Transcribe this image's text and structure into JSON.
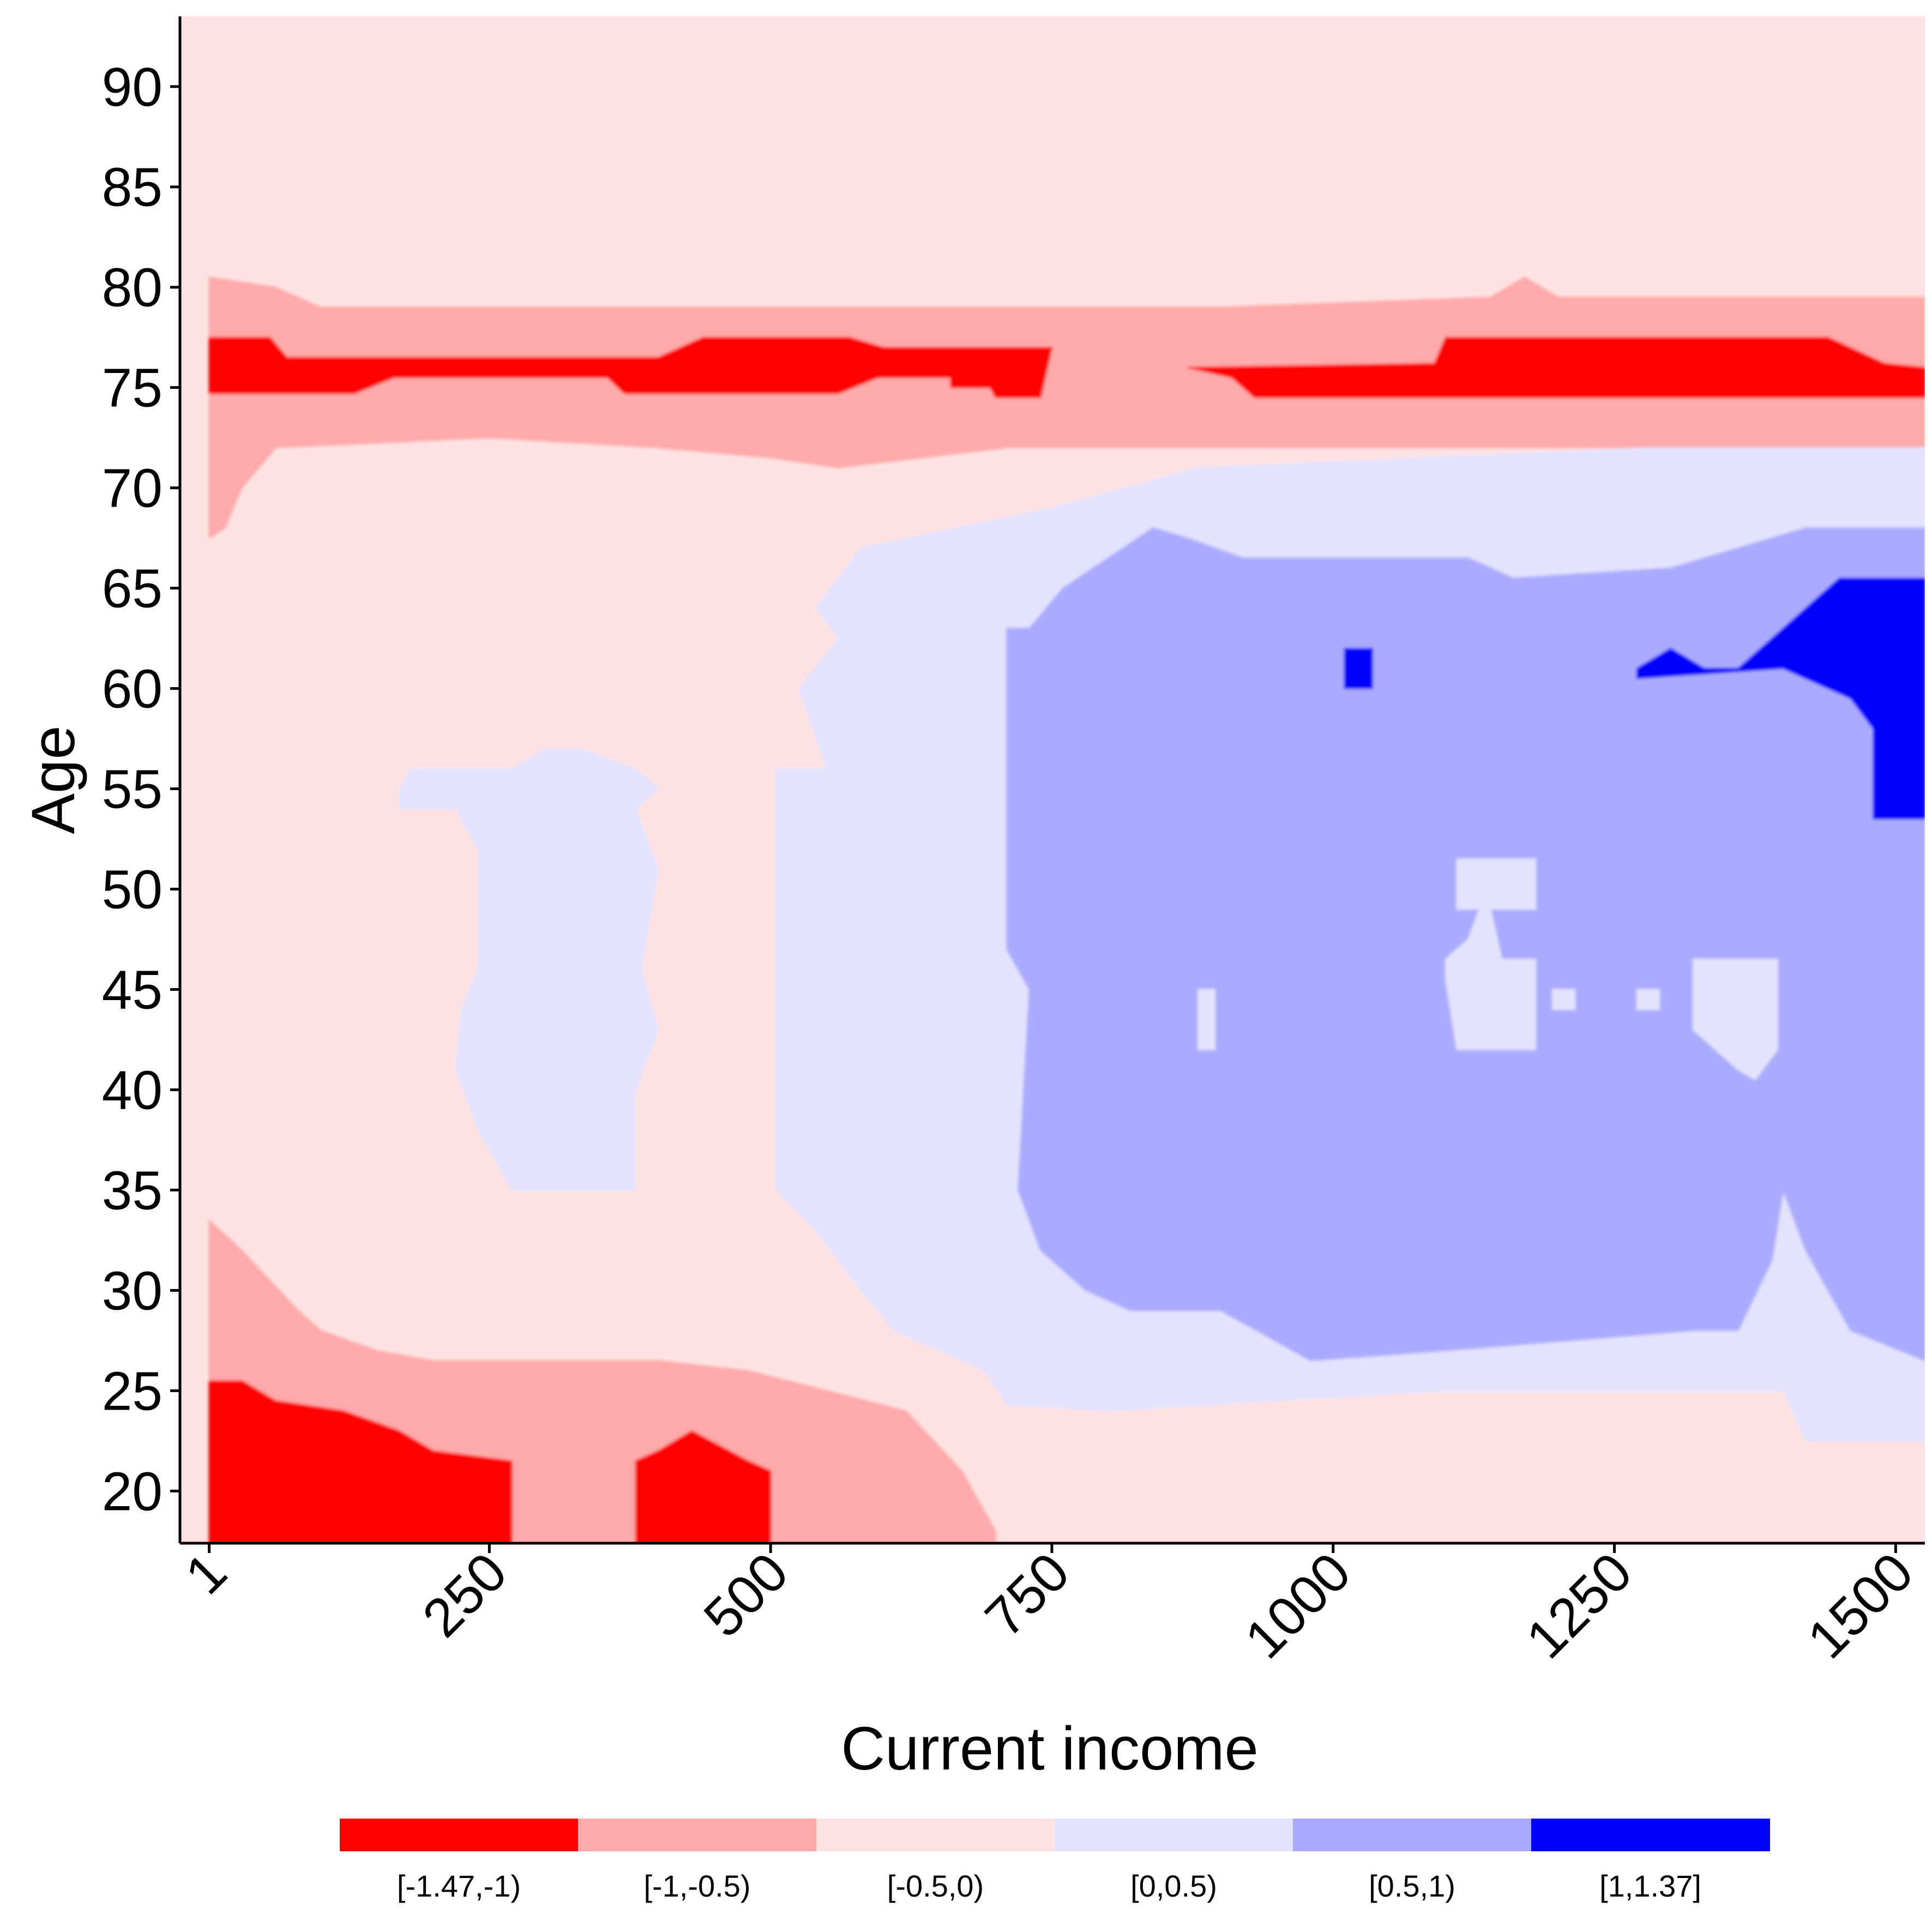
{
  "chart_data": {
    "type": "heatmap",
    "title": "",
    "xlabel": "Current income",
    "ylabel": "Age",
    "xlim": [
      -25,
      1526
    ],
    "ylim": [
      17.4,
      93.5
    ],
    "xticks": [
      1,
      250,
      500,
      750,
      1000,
      1250,
      1500
    ],
    "xtick_labels": [
      "1",
      "250",
      "500",
      "750",
      "1000",
      "1250",
      "1500"
    ],
    "yticks": [
      20,
      25,
      30,
      35,
      40,
      45,
      50,
      55,
      60,
      65,
      70,
      75,
      80,
      85,
      90
    ],
    "ytick_labels": [
      "20",
      "25",
      "30",
      "35",
      "40",
      "45",
      "50",
      "55",
      "60",
      "65",
      "70",
      "75",
      "80",
      "85",
      "90"
    ],
    "grid": false,
    "legend": {
      "position": "bottom",
      "bins": [
        {
          "label": "[-1.47,-1)",
          "color": "#ff0000",
          "min": -1.47,
          "max": -1.0
        },
        {
          "label": "[-1,-0.5)",
          "color": "#ffaaaa",
          "min": -1.0,
          "max": -0.5
        },
        {
          "label": "[-0.5,0)",
          "color": "#ffe3e3",
          "min": -0.5,
          "max": 0.0
        },
        {
          "label": "[0,0.5)",
          "color": "#e3e3ff",
          "min": 0.0,
          "max": 0.5
        },
        {
          "label": "[0.5,1)",
          "color": "#aaaaff",
          "min": 0.5,
          "max": 1.0
        },
        {
          "label": "[1,1.37]",
          "color": "#0000ff",
          "min": 1.0,
          "max": 1.37
        }
      ]
    },
    "background_bin": 2,
    "regions": [
      {
        "bin": 1,
        "label": "age 68-79 band",
        "points": [
          [
            1,
            67.5
          ],
          [
            15,
            68
          ],
          [
            30,
            70
          ],
          [
            60,
            72
          ],
          [
            250,
            72.5
          ],
          [
            400,
            72
          ],
          [
            500,
            71.5
          ],
          [
            560,
            71
          ],
          [
            710,
            72
          ],
          [
            1526,
            72
          ],
          [
            1526,
            79.5
          ],
          [
            1200,
            79.5
          ],
          [
            1170,
            80.5
          ],
          [
            1140,
            79.5
          ],
          [
            900,
            79
          ],
          [
            690,
            79
          ],
          [
            100,
            79
          ],
          [
            60,
            80
          ],
          [
            1,
            80.5
          ]
        ]
      },
      {
        "bin": 0,
        "label": "age 74-77 band",
        "points": [
          [
            1,
            74.7
          ],
          [
            130,
            74.7
          ],
          [
            165,
            75.5
          ],
          [
            355,
            75.5
          ],
          [
            370,
            74.7
          ],
          [
            560,
            74.7
          ],
          [
            595,
            75.5
          ],
          [
            690,
            75.5
          ],
          [
            700,
            74.5
          ],
          [
            740,
            74.5
          ],
          [
            750,
            77
          ],
          [
            650,
            77
          ],
          [
            600,
            77
          ],
          [
            570,
            77.5
          ],
          [
            440,
            77.5
          ],
          [
            400,
            76.5
          ],
          [
            70,
            76.5
          ],
          [
            55,
            77.5
          ],
          [
            1,
            77.5
          ]
        ]
      },
      {
        "bin": 0,
        "label": "age 74-77 band right",
        "points": [
          [
            870,
            76
          ],
          [
            910,
            75.5
          ],
          [
            930,
            74.5
          ],
          [
            1526,
            74.5
          ],
          [
            1526,
            76
          ],
          [
            1490,
            76.2
          ],
          [
            1440,
            77.5
          ],
          [
            1100,
            77.5
          ],
          [
            1090,
            76.2
          ]
        ]
      },
      {
        "bin": 3,
        "label": "low income blob",
        "points": [
          [
            170,
            54
          ],
          [
            220,
            54
          ],
          [
            240,
            52
          ],
          [
            240,
            46
          ],
          [
            225,
            44
          ],
          [
            220,
            41
          ],
          [
            240,
            38
          ],
          [
            270,
            35
          ],
          [
            380,
            35
          ],
          [
            380,
            40
          ],
          [
            400,
            43
          ],
          [
            385,
            46
          ],
          [
            400,
            51
          ],
          [
            380,
            54
          ],
          [
            400,
            55
          ],
          [
            380,
            56
          ],
          [
            330,
            57
          ],
          [
            300,
            57
          ],
          [
            270,
            56
          ],
          [
            180,
            56
          ],
          [
            170,
            55
          ]
        ]
      },
      {
        "bin": 3,
        "label": "mid/high income zone",
        "points": [
          [
            505,
            56
          ],
          [
            550,
            56
          ],
          [
            525,
            60
          ],
          [
            560,
            62.5
          ],
          [
            540,
            64
          ],
          [
            580,
            67
          ],
          [
            750,
            69
          ],
          [
            880,
            71
          ],
          [
            1280,
            72
          ],
          [
            1526,
            72
          ],
          [
            1526,
            22.5
          ],
          [
            1420,
            22.5
          ],
          [
            1400,
            25
          ],
          [
            1100,
            25
          ],
          [
            800,
            24
          ],
          [
            710,
            24.3
          ],
          [
            690,
            26
          ],
          [
            610,
            28
          ],
          [
            580,
            30
          ],
          [
            540,
            33
          ],
          [
            505,
            35
          ],
          [
            505,
            45
          ]
        ]
      },
      {
        "bin": 4,
        "label": "positive core",
        "points": [
          [
            730,
            63
          ],
          [
            760,
            65
          ],
          [
            840,
            68
          ],
          [
            870,
            67.5
          ],
          [
            920,
            66.5
          ],
          [
            1120,
            66.5
          ],
          [
            1160,
            65.5
          ],
          [
            1300,
            66
          ],
          [
            1420,
            68
          ],
          [
            1526,
            68
          ],
          [
            1526,
            26.5
          ],
          [
            1460,
            28
          ],
          [
            1420,
            32
          ],
          [
            1400,
            35
          ],
          [
            1390,
            31.5
          ],
          [
            1360,
            28
          ],
          [
            1320,
            28
          ],
          [
            1100,
            27
          ],
          [
            980,
            26.5
          ],
          [
            900,
            29
          ],
          [
            820,
            29
          ],
          [
            780,
            30
          ],
          [
            740,
            32
          ],
          [
            720,
            35
          ],
          [
            730,
            45
          ],
          [
            710,
            47
          ],
          [
            710,
            63
          ]
        ]
      },
      {
        "bin": 3,
        "label": "white holes A",
        "points": [
          [
            1110,
            51.5
          ],
          [
            1180,
            51.5
          ],
          [
            1180,
            49
          ],
          [
            1140,
            49
          ],
          [
            1150,
            46.5
          ],
          [
            1180,
            46.5
          ],
          [
            1180,
            42
          ],
          [
            1110,
            42
          ],
          [
            1100,
            45.5
          ],
          [
            1100,
            46.5
          ],
          [
            1120,
            47.5
          ],
          [
            1130,
            49
          ],
          [
            1110,
            49
          ]
        ]
      },
      {
        "bin": 3,
        "label": "white holes B",
        "points": [
          [
            1320,
            46.5
          ],
          [
            1395,
            46.5
          ],
          [
            1395,
            42
          ],
          [
            1375,
            40.5
          ],
          [
            1360,
            41
          ],
          [
            1340,
            42
          ],
          [
            1320,
            43
          ]
        ]
      },
      {
        "bin": 3,
        "label": "white hole C",
        "points": [
          [
            880,
            45
          ],
          [
            895,
            45
          ],
          [
            895,
            42
          ],
          [
            880,
            42
          ]
        ]
      },
      {
        "bin": 3,
        "label": "white hole D",
        "points": [
          [
            1195,
            45
          ],
          [
            1215,
            45
          ],
          [
            1215,
            44
          ],
          [
            1195,
            44
          ]
        ]
      },
      {
        "bin": 3,
        "label": "white hole E",
        "points": [
          [
            1270,
            45
          ],
          [
            1290,
            45
          ],
          [
            1290,
            44
          ],
          [
            1270,
            44
          ]
        ]
      },
      {
        "bin": 5,
        "label": "strong positive right",
        "points": [
          [
            1270,
            61
          ],
          [
            1300,
            62
          ],
          [
            1330,
            61
          ],
          [
            1360,
            61
          ],
          [
            1420,
            64
          ],
          [
            1450,
            65.5
          ],
          [
            1526,
            65.5
          ],
          [
            1526,
            53.5
          ],
          [
            1480,
            53.5
          ],
          [
            1480,
            58
          ],
          [
            1460,
            59.5
          ],
          [
            1400,
            61
          ],
          [
            1270,
            60.5
          ]
        ]
      },
      {
        "bin": 5,
        "label": "strong positive dot",
        "points": [
          [
            1010,
            62
          ],
          [
            1035,
            62
          ],
          [
            1035,
            60
          ],
          [
            1010,
            60
          ]
        ]
      },
      {
        "bin": 1,
        "label": "young band",
        "points": [
          [
            1,
            33.5
          ],
          [
            30,
            32
          ],
          [
            80,
            29
          ],
          [
            100,
            28
          ],
          [
            150,
            27
          ],
          [
            200,
            26.5
          ],
          [
            400,
            26.5
          ],
          [
            480,
            26
          ],
          [
            620,
            24
          ],
          [
            670,
            21
          ],
          [
            700,
            18
          ],
          [
            700,
            17.4
          ],
          [
            1,
            17.4
          ]
        ]
      },
      {
        "bin": 0,
        "label": "youngest left",
        "points": [
          [
            1,
            25.5
          ],
          [
            30,
            25.5
          ],
          [
            60,
            24.5
          ],
          [
            120,
            24
          ],
          [
            170,
            23
          ],
          [
            200,
            22
          ],
          [
            270,
            21.5
          ],
          [
            270,
            17.4
          ],
          [
            1,
            17.4
          ]
        ]
      },
      {
        "bin": 0,
        "label": "youngest mid",
        "points": [
          [
            380,
            21.5
          ],
          [
            400,
            22
          ],
          [
            430,
            23
          ],
          [
            480,
            21.5
          ],
          [
            500,
            21
          ],
          [
            500,
            17.4
          ],
          [
            380,
            17.4
          ]
        ]
      },
      {
        "bin": 0,
        "label": "age 75 small",
        "points": [
          [
            660,
            75
          ],
          [
            700,
            75
          ],
          [
            700,
            76.5
          ],
          [
            660,
            76.5
          ]
        ]
      }
    ]
  }
}
